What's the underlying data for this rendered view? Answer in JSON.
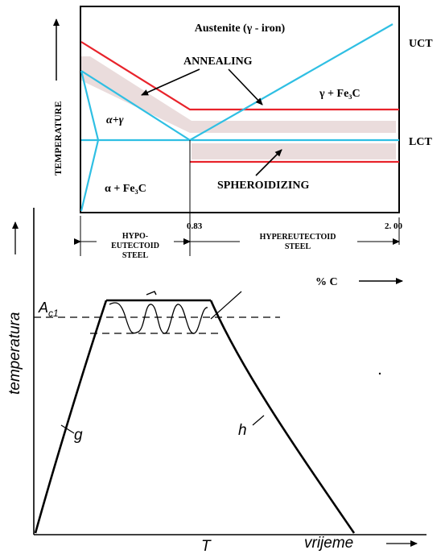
{
  "top_diagram": {
    "region_labels": {
      "austenite": "Austenite (γ - iron)",
      "alpha_gamma": "α+γ",
      "gamma_fe3c": "γ + Fe₃C",
      "alpha_fe3c": "α + Fe₃C"
    },
    "process_labels": {
      "annealing": "ANNEALING",
      "spheroidizing": "SPHEROIDIZING"
    },
    "line_labels": {
      "uct": "UCT",
      "lct": "LCT"
    },
    "y_axis_label": "TEMPERATURE",
    "x_ticks": [
      "0.83",
      "2. 00"
    ],
    "ranges": {
      "hypo": [
        "HYPO-",
        "EUTECTOID",
        "STEEL"
      ],
      "hyper": [
        "HYPEREUTECTOID",
        "STEEL"
      ]
    },
    "x_axis_label": "% C",
    "colors": {
      "uct_line": "#e8232b",
      "phase_lines": "#2fbfe3",
      "band_fill": "#eadcdc"
    }
  },
  "bottom_diagram": {
    "y_axis_label": "temperatura",
    "x_axis_label": "vrijeme",
    "level_label": "A",
    "level_subscript": "c1",
    "curve_labels": {
      "heating": "g",
      "cooling": "h"
    },
    "time_label": "T"
  }
}
